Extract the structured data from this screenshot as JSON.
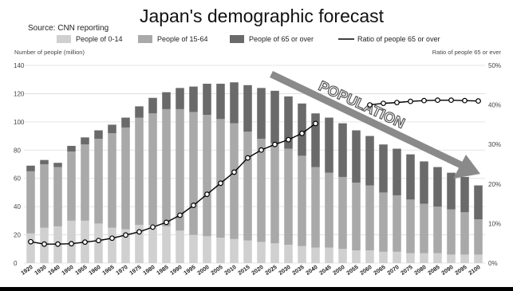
{
  "source": "Source: CNN reporting",
  "chart_data": {
    "type": "bar",
    "title": "Japan's demographic forecast",
    "ylabel": "Number of people (million)",
    "y2label": "Ratio of people 65 or ever",
    "annotation": "POPULATION",
    "ylim": [
      0,
      140
    ],
    "y_ticks": [
      0,
      20,
      40,
      60,
      80,
      100,
      120,
      140
    ],
    "y2lim": [
      0,
      50
    ],
    "y2_ticks": [
      "0%",
      "10%",
      "20%",
      "30%",
      "40%",
      "50%"
    ],
    "y2_tick_values": [
      0,
      10,
      20,
      30,
      40,
      50
    ],
    "stacked": true,
    "grid": true,
    "legend_position": "top",
    "categories": [
      "1920",
      "1930",
      "1940",
      "1950",
      "1955",
      "1960",
      "1965",
      "1970",
      "1975",
      "1980",
      "1985",
      "1990",
      "1995",
      "2000",
      "2005",
      "2010",
      "2015",
      "2020",
      "2025",
      "2030",
      "2035",
      "2040",
      "2045",
      "2050",
      "2055",
      "2060",
      "2065",
      "2070",
      "2075",
      "2080",
      "2085",
      "2090",
      "2095",
      "2100"
    ],
    "series": [
      {
        "name": "People of 0-14",
        "color": "#d0d0d0",
        "values": [
          21,
          25,
          26,
          30,
          30,
          28,
          25,
          24,
          27,
          27,
          26,
          23,
          20,
          19,
          18,
          17,
          16,
          15,
          14,
          13,
          12,
          11,
          11,
          10,
          9,
          9,
          8,
          8,
          7,
          7,
          7,
          6,
          6,
          6
        ]
      },
      {
        "name": "People of 15-64",
        "color": "#a9a9a9",
        "values": [
          44,
          45,
          42,
          49,
          54,
          60,
          67,
          72,
          76,
          79,
          83,
          86,
          87,
          86,
          84,
          82,
          77,
          73,
          71,
          68,
          64,
          57,
          53,
          51,
          48,
          46,
          42,
          40,
          38,
          35,
          33,
          32,
          30,
          25
        ]
      },
      {
        "name": "People of 65 or over",
        "color": "#6a6a6a",
        "values": [
          4,
          3,
          3,
          4,
          5,
          6,
          6,
          7,
          8,
          11,
          12,
          15,
          18,
          22,
          25,
          29,
          33,
          36,
          37,
          37,
          37,
          38,
          39,
          38,
          37,
          35,
          34,
          33,
          32,
          30,
          28,
          26,
          25,
          24
        ]
      },
      {
        "name": "Ratio of people 65 or over",
        "type": "line",
        "axis": "right",
        "color": "#000000",
        "values": [
          5.4,
          4.8,
          4.8,
          4.9,
          5.3,
          5.7,
          6.3,
          7.1,
          7.9,
          9.1,
          10.3,
          12.1,
          14.6,
          17.4,
          20.2,
          23.0,
          26.6,
          28.6,
          30.0,
          31.2,
          32.8,
          35.3,
          null,
          null,
          null,
          40.0,
          40.4,
          40.6,
          40.9,
          41.1,
          41.2,
          41.2,
          41.1,
          41.0
        ]
      }
    ]
  }
}
